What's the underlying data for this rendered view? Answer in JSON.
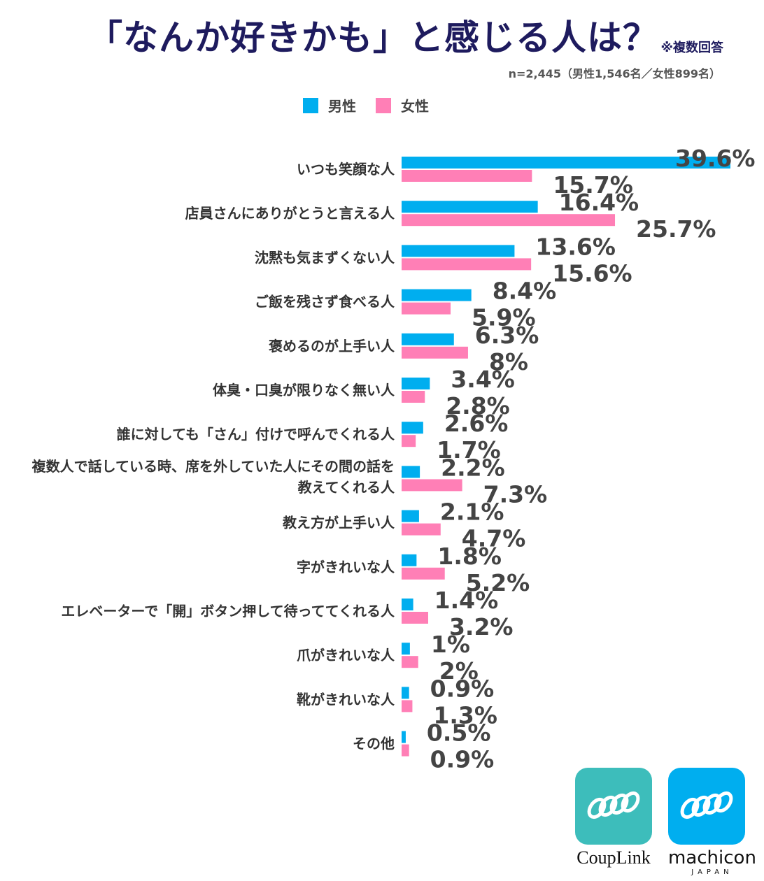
{
  "title": "「なんか好きかも」と感じる人は？",
  "note": "※複数回答",
  "sample": "n=2,445（男性1,546名／女性899名）",
  "legend": {
    "male": "男性",
    "female": "女性"
  },
  "colors": {
    "male": "#00aeef",
    "female": "#ff7fb6",
    "title": "#1e1b5e",
    "couplink": "#3dbdbb",
    "machicon": "#00aeef"
  },
  "logos": {
    "couplink": {
      "icon": "spring-coil-icon",
      "name": "CoupLink"
    },
    "machicon": {
      "icon": "spring-coil-icon",
      "name": "machicon",
      "sub": "JAPAN"
    }
  },
  "chart_data": {
    "type": "bar",
    "orientation": "horizontal",
    "title": "「なんか好きかも」と感じる人は？",
    "legend_position": "top-left",
    "grid": false,
    "xlim": [
      0,
      39.6
    ],
    "categories": [
      [
        "いつも笑顔な人"
      ],
      [
        "店員さんにありがとうと言える人"
      ],
      [
        "沈黙も気まずくない人"
      ],
      [
        "ご飯を残さず食べる人"
      ],
      [
        "褒めるのが上手い人"
      ],
      [
        "体臭・口臭が限りなく無い人"
      ],
      [
        "誰に対しても「さん」付けで呼んでくれる人"
      ],
      [
        "複数人で話している時、席を外していた人にその間の話を",
        "教えてくれる人"
      ],
      [
        "教え方が上手い人"
      ],
      [
        "字がきれいな人"
      ],
      [
        "エレベーターで「開」ボタン押して待っててくれる人"
      ],
      [
        "爪がきれいな人"
      ],
      [
        "靴がきれいな人"
      ],
      [
        "その他"
      ]
    ],
    "series": [
      {
        "name": "男性",
        "values": [
          39.6,
          16.4,
          13.6,
          8.4,
          6.3,
          3.4,
          2.6,
          2.2,
          2.1,
          1.8,
          1.4,
          1,
          0.9,
          0.5
        ],
        "labels": [
          "39.6%",
          "16.4%",
          "13.6%",
          "8.4%",
          "6.3%",
          "3.4%",
          "2.6%",
          "2.2%",
          "2.1%",
          "1.8%",
          "1.4%",
          "1%",
          "0.9%",
          "0.5%"
        ]
      },
      {
        "name": "女性",
        "values": [
          15.7,
          25.7,
          15.6,
          5.9,
          8,
          2.8,
          1.7,
          7.3,
          4.7,
          5.2,
          3.2,
          2,
          1.3,
          0.9
        ],
        "labels": [
          "15.7%",
          "25.7%",
          "15.6%",
          "5.9%",
          "8%",
          "2.8%",
          "1.7%",
          "7.3%",
          "4.7%",
          "5.2%",
          "3.2%",
          "2%",
          "1.3%",
          "0.9%"
        ]
      }
    ]
  }
}
